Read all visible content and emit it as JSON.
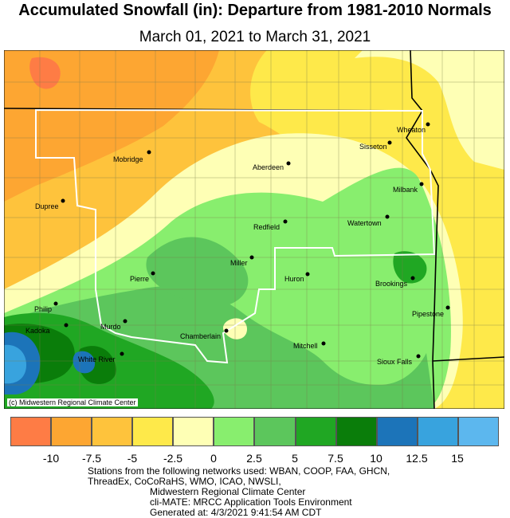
{
  "title": "Accumulated Snowfall (in): Departure from 1981-2010 Normals",
  "subtitle": "March 01, 2021 to March 31, 2021",
  "copyright": "(c) Midwestern Regional Climate Center",
  "legend": {
    "colors": [
      "#fe7c45",
      "#fda632",
      "#fec33c",
      "#fee94a",
      "#feffb5",
      "#88ee6e",
      "#5cc65c",
      "#20a723",
      "#0a7d0a",
      "#1c74b9",
      "#38a3de",
      "#5cb7ee"
    ],
    "ticks": [
      "-10",
      "-7.5",
      "-5",
      "-2.5",
      "0",
      "2.5",
      "5",
      "7.5",
      "10",
      "12.5",
      "15"
    ]
  },
  "cities": [
    {
      "name": "Wheaton"
    },
    {
      "name": "Sisseton"
    },
    {
      "name": "Mobridge"
    },
    {
      "name": "Aberdeen"
    },
    {
      "name": "Milbank"
    },
    {
      "name": "Dupree"
    },
    {
      "name": "Watertown"
    },
    {
      "name": "Redfield"
    },
    {
      "name": "Miller"
    },
    {
      "name": "Pierre"
    },
    {
      "name": "Huron"
    },
    {
      "name": "Brookings"
    },
    {
      "name": "Philip"
    },
    {
      "name": "Kadoka"
    },
    {
      "name": "Murdo"
    },
    {
      "name": "Pipestone"
    },
    {
      "name": "Chamberlain"
    },
    {
      "name": "Mitchell"
    },
    {
      "name": "White River"
    },
    {
      "name": "Sioux Falls"
    }
  ],
  "footer": {
    "line1": "Stations from the following networks used: WBAN, COOP, FAA, GHCN,",
    "line2": "ThreadEx, CoCoRaHS, WMO, ICAO, NWSLI,",
    "line3": "Midwestern Regional Climate Center",
    "line4": "cli-MATE: MRCC Application Tools Environment",
    "line5": "Generated at: 4/3/2021 9:41:54 AM CDT"
  }
}
